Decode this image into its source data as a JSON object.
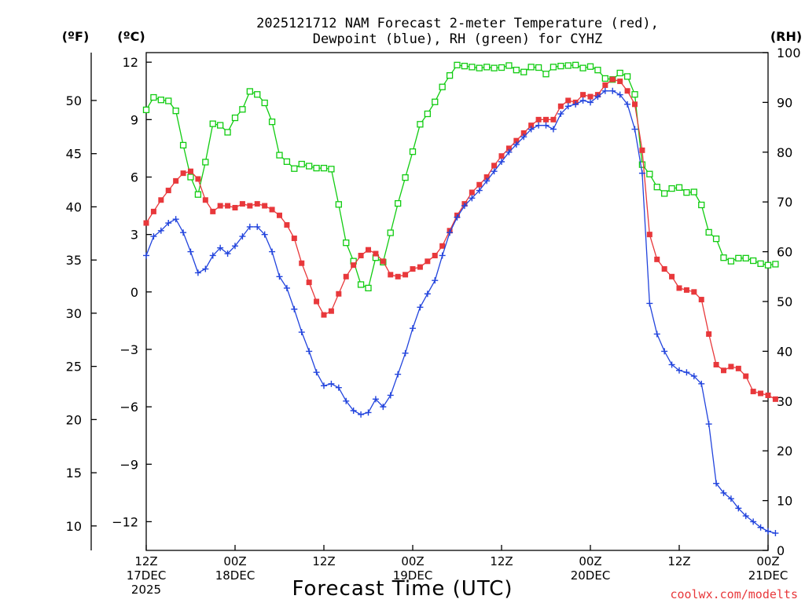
{
  "chart_data": {
    "type": "line",
    "title_line1": "2025121712 NAM Forecast 2-meter Temperature (red),",
    "title_line2": "Dewpoint (blue), RH (green) for CYHZ",
    "xlabel": "Forecast Time (UTC)",
    "credit": "coolwx.com/modelts",
    "unit_f": "(ºF)",
    "unit_c": "(ºC)",
    "unit_rh": "(RH)",
    "colors": {
      "temperature": "#e8383b",
      "dewpoint": "#2244dd",
      "rh": "#11cc11",
      "credit": "#e8383b"
    },
    "x_hours_range": [
      0,
      84
    ],
    "celsius_range": [
      -13.5,
      12.5
    ],
    "rh_range": [
      0,
      100
    ],
    "fahrenheit_ticks": [
      {
        "value": 10,
        "label": "10"
      },
      {
        "value": 15,
        "label": "15"
      },
      {
        "value": 20,
        "label": "20"
      },
      {
        "value": 25,
        "label": "25"
      },
      {
        "value": 30,
        "label": "30"
      },
      {
        "value": 35,
        "label": "35"
      },
      {
        "value": 40,
        "label": "40"
      },
      {
        "value": 45,
        "label": "45"
      },
      {
        "value": 50,
        "label": "50"
      }
    ],
    "celsius_ticks": [
      {
        "value": -12,
        "label": "−12"
      },
      {
        "value": -9,
        "label": "−9"
      },
      {
        "value": -6,
        "label": "−6"
      },
      {
        "value": -3,
        "label": "−3"
      },
      {
        "value": 0,
        "label": "0"
      },
      {
        "value": 3,
        "label": "3"
      },
      {
        "value": 6,
        "label": "6"
      },
      {
        "value": 9,
        "label": "9"
      },
      {
        "value": 12,
        "label": "12"
      }
    ],
    "rh_ticks": [
      {
        "value": 0,
        "label": "0"
      },
      {
        "value": 10,
        "label": "10"
      },
      {
        "value": 20,
        "label": "20"
      },
      {
        "value": 30,
        "label": "30"
      },
      {
        "value": 40,
        "label": "40"
      },
      {
        "value": 50,
        "label": "50"
      },
      {
        "value": 60,
        "label": "60"
      },
      {
        "value": 70,
        "label": "70"
      },
      {
        "value": 80,
        "label": "80"
      },
      {
        "value": 90,
        "label": "90"
      },
      {
        "value": 100,
        "label": "100"
      }
    ],
    "x_ticks": [
      {
        "hour": 0,
        "line1": "12Z",
        "line2": "17DEC",
        "line3": "2025"
      },
      {
        "hour": 12,
        "line1": "00Z",
        "line2": "18DEC",
        "line3": ""
      },
      {
        "hour": 24,
        "line1": "12Z",
        "line2": "",
        "line3": ""
      },
      {
        "hour": 36,
        "line1": "00Z",
        "line2": "19DEC",
        "line3": ""
      },
      {
        "hour": 48,
        "line1": "12Z",
        "line2": "",
        "line3": ""
      },
      {
        "hour": 60,
        "line1": "00Z",
        "line2": "20DEC",
        "line3": ""
      },
      {
        "hour": 72,
        "line1": "12Z",
        "line2": "",
        "line3": ""
      },
      {
        "hour": 84,
        "line1": "00Z",
        "line2": "21DEC",
        "line3": ""
      }
    ],
    "series": [
      {
        "name": "Temperature (°C)",
        "marker": "filled-square",
        "values": [
          [
            0,
            3.6
          ],
          [
            1,
            4.2
          ],
          [
            2,
            4.8
          ],
          [
            3,
            5.3
          ],
          [
            4,
            5.8
          ],
          [
            5,
            6.2
          ],
          [
            6,
            6.3
          ],
          [
            7,
            5.9
          ],
          [
            8,
            4.8
          ],
          [
            9,
            4.2
          ],
          [
            10,
            4.5
          ],
          [
            11,
            4.5
          ],
          [
            12,
            4.4
          ],
          [
            13,
            4.6
          ],
          [
            14,
            4.5
          ],
          [
            15,
            4.6
          ],
          [
            16,
            4.5
          ],
          [
            17,
            4.3
          ],
          [
            18,
            4.0
          ],
          [
            19,
            3.5
          ],
          [
            20,
            2.8
          ],
          [
            21,
            1.5
          ],
          [
            22,
            0.5
          ],
          [
            23,
            -0.5
          ],
          [
            24,
            -1.2
          ],
          [
            25,
            -1.0
          ],
          [
            26,
            -0.1
          ],
          [
            27,
            0.8
          ],
          [
            28,
            1.4
          ],
          [
            29,
            1.9
          ],
          [
            30,
            2.2
          ],
          [
            31,
            2.0
          ],
          [
            32,
            1.6
          ],
          [
            33,
            0.9
          ],
          [
            34,
            0.8
          ],
          [
            35,
            0.9
          ],
          [
            36,
            1.2
          ],
          [
            37,
            1.3
          ],
          [
            38,
            1.6
          ],
          [
            39,
            1.9
          ],
          [
            40,
            2.4
          ],
          [
            41,
            3.2
          ],
          [
            42,
            4.0
          ],
          [
            43,
            4.6
          ],
          [
            44,
            5.2
          ],
          [
            45,
            5.6
          ],
          [
            46,
            6.0
          ],
          [
            47,
            6.6
          ],
          [
            48,
            7.1
          ],
          [
            49,
            7.5
          ],
          [
            50,
            7.9
          ],
          [
            51,
            8.3
          ],
          [
            52,
            8.7
          ],
          [
            53,
            9.0
          ],
          [
            54,
            9.0
          ],
          [
            55,
            9.0
          ],
          [
            56,
            9.7
          ],
          [
            57,
            10.0
          ],
          [
            58,
            9.9
          ],
          [
            59,
            10.3
          ],
          [
            60,
            10.2
          ],
          [
            61,
            10.3
          ],
          [
            62,
            10.8
          ],
          [
            63,
            11.1
          ],
          [
            64,
            11.0
          ],
          [
            65,
            10.5
          ],
          [
            66,
            9.8
          ],
          [
            67,
            7.4
          ],
          [
            68,
            3.0
          ],
          [
            69,
            1.7
          ],
          [
            70,
            1.2
          ],
          [
            71,
            0.8
          ],
          [
            72,
            0.2
          ],
          [
            73,
            0.1
          ],
          [
            74,
            0.0
          ],
          [
            75,
            -0.4
          ],
          [
            76,
            -2.2
          ],
          [
            77,
            -3.8
          ],
          [
            78,
            -4.1
          ],
          [
            79,
            -3.9
          ],
          [
            80,
            -4.0
          ],
          [
            81,
            -4.4
          ],
          [
            82,
            -5.2
          ],
          [
            83,
            -5.3
          ],
          [
            84,
            -5.4
          ],
          [
            85,
            -5.6
          ]
        ]
      },
      {
        "name": "Dewpoint (°C)",
        "marker": "plus",
        "values": [
          [
            0,
            1.9
          ],
          [
            1,
            2.9
          ],
          [
            2,
            3.2
          ],
          [
            3,
            3.6
          ],
          [
            4,
            3.8
          ],
          [
            5,
            3.1
          ],
          [
            6,
            2.1
          ],
          [
            7,
            1.0
          ],
          [
            8,
            1.2
          ],
          [
            9,
            1.9
          ],
          [
            10,
            2.3
          ],
          [
            11,
            2.0
          ],
          [
            12,
            2.4
          ],
          [
            13,
            2.9
          ],
          [
            14,
            3.4
          ],
          [
            15,
            3.4
          ],
          [
            16,
            3.0
          ],
          [
            17,
            2.1
          ],
          [
            18,
            0.8
          ],
          [
            19,
            0.2
          ],
          [
            20,
            -0.9
          ],
          [
            21,
            -2.1
          ],
          [
            22,
            -3.1
          ],
          [
            23,
            -4.2
          ],
          [
            24,
            -4.9
          ],
          [
            25,
            -4.8
          ],
          [
            26,
            -5.0
          ],
          [
            27,
            -5.7
          ],
          [
            28,
            -6.2
          ],
          [
            29,
            -6.4
          ],
          [
            30,
            -6.3
          ],
          [
            31,
            -5.6
          ],
          [
            32,
            -6.0
          ],
          [
            33,
            -5.4
          ],
          [
            34,
            -4.3
          ],
          [
            35,
            -3.2
          ],
          [
            36,
            -1.9
          ],
          [
            37,
            -0.8
          ],
          [
            38,
            -0.1
          ],
          [
            39,
            0.6
          ],
          [
            40,
            1.9
          ],
          [
            41,
            3.1
          ],
          [
            42,
            3.9
          ],
          [
            43,
            4.5
          ],
          [
            44,
            4.9
          ],
          [
            45,
            5.3
          ],
          [
            46,
            5.8
          ],
          [
            47,
            6.3
          ],
          [
            48,
            6.8
          ],
          [
            49,
            7.3
          ],
          [
            50,
            7.7
          ],
          [
            51,
            8.1
          ],
          [
            52,
            8.5
          ],
          [
            53,
            8.7
          ],
          [
            54,
            8.7
          ],
          [
            55,
            8.5
          ],
          [
            56,
            9.3
          ],
          [
            57,
            9.7
          ],
          [
            58,
            9.8
          ],
          [
            59,
            10.0
          ],
          [
            60,
            9.9
          ],
          [
            61,
            10.2
          ],
          [
            62,
            10.5
          ],
          [
            63,
            10.5
          ],
          [
            64,
            10.3
          ],
          [
            65,
            9.8
          ],
          [
            66,
            8.5
          ],
          [
            67,
            6.2
          ],
          [
            68,
            -0.6
          ],
          [
            69,
            -2.2
          ],
          [
            70,
            -3.1
          ],
          [
            71,
            -3.8
          ],
          [
            72,
            -4.1
          ],
          [
            73,
            -4.2
          ],
          [
            74,
            -4.4
          ],
          [
            75,
            -4.8
          ],
          [
            76,
            -6.9
          ],
          [
            77,
            -10.0
          ],
          [
            78,
            -10.5
          ],
          [
            79,
            -10.8
          ],
          [
            80,
            -11.3
          ],
          [
            81,
            -11.7
          ],
          [
            82,
            -12.0
          ],
          [
            83,
            -12.3
          ],
          [
            84,
            -12.5
          ],
          [
            85,
            -12.6
          ]
        ]
      },
      {
        "name": "Relative Humidity (%)",
        "marker": "open-square",
        "values": [
          [
            0,
            88.5
          ],
          [
            1,
            91.0
          ],
          [
            2,
            90.5
          ],
          [
            3,
            90.3
          ],
          [
            4,
            88.3
          ],
          [
            5,
            81.4
          ],
          [
            6,
            75.0
          ],
          [
            7,
            71.5
          ],
          [
            8,
            78.0
          ],
          [
            9,
            85.7
          ],
          [
            10,
            85.4
          ],
          [
            11,
            84.0
          ],
          [
            12,
            86.9
          ],
          [
            13,
            88.6
          ],
          [
            14,
            92.2
          ],
          [
            15,
            91.6
          ],
          [
            16,
            89.9
          ],
          [
            17,
            86.1
          ],
          [
            18,
            79.4
          ],
          [
            19,
            78.1
          ],
          [
            20,
            76.7
          ],
          [
            21,
            77.6
          ],
          [
            22,
            77.2
          ],
          [
            23,
            76.8
          ],
          [
            24,
            76.8
          ],
          [
            25,
            76.6
          ],
          [
            26,
            69.5
          ],
          [
            27,
            61.8
          ],
          [
            28,
            58.1
          ],
          [
            29,
            53.4
          ],
          [
            30,
            52.7
          ],
          [
            31,
            58.8
          ],
          [
            32,
            57.9
          ],
          [
            33,
            63.8
          ],
          [
            34,
            69.7
          ],
          [
            35,
            74.9
          ],
          [
            36,
            80.1
          ],
          [
            37,
            85.6
          ],
          [
            38,
            87.7
          ],
          [
            39,
            90.1
          ],
          [
            40,
            93.1
          ],
          [
            41,
            95.4
          ],
          [
            42,
            97.5
          ],
          [
            43,
            97.3
          ],
          [
            44,
            97.1
          ],
          [
            45,
            96.9
          ],
          [
            46,
            97.1
          ],
          [
            47,
            96.9
          ],
          [
            48,
            97.0
          ],
          [
            49,
            97.4
          ],
          [
            50,
            96.5
          ],
          [
            51,
            96.1
          ],
          [
            52,
            97.1
          ],
          [
            53,
            97.0
          ],
          [
            54,
            95.7
          ],
          [
            55,
            97.1
          ],
          [
            56,
            97.3
          ],
          [
            57,
            97.4
          ],
          [
            58,
            97.5
          ],
          [
            59,
            96.9
          ],
          [
            60,
            97.2
          ],
          [
            61,
            96.5
          ],
          [
            62,
            94.8
          ],
          [
            63,
            94.6
          ],
          [
            64,
            95.9
          ],
          [
            65,
            95.2
          ],
          [
            66,
            91.6
          ],
          [
            67,
            77.5
          ],
          [
            68,
            75.6
          ],
          [
            69,
            73.0
          ],
          [
            70,
            71.7
          ],
          [
            71,
            72.7
          ],
          [
            72,
            72.9
          ],
          [
            73,
            71.9
          ],
          [
            74,
            72.0
          ],
          [
            75,
            69.4
          ],
          [
            76,
            63.9
          ],
          [
            77,
            62.6
          ],
          [
            78,
            58.8
          ],
          [
            79,
            58.1
          ],
          [
            80,
            58.7
          ],
          [
            81,
            58.7
          ],
          [
            82,
            58.2
          ],
          [
            83,
            57.6
          ],
          [
            84,
            57.3
          ],
          [
            85,
            57.5
          ]
        ]
      }
    ]
  }
}
